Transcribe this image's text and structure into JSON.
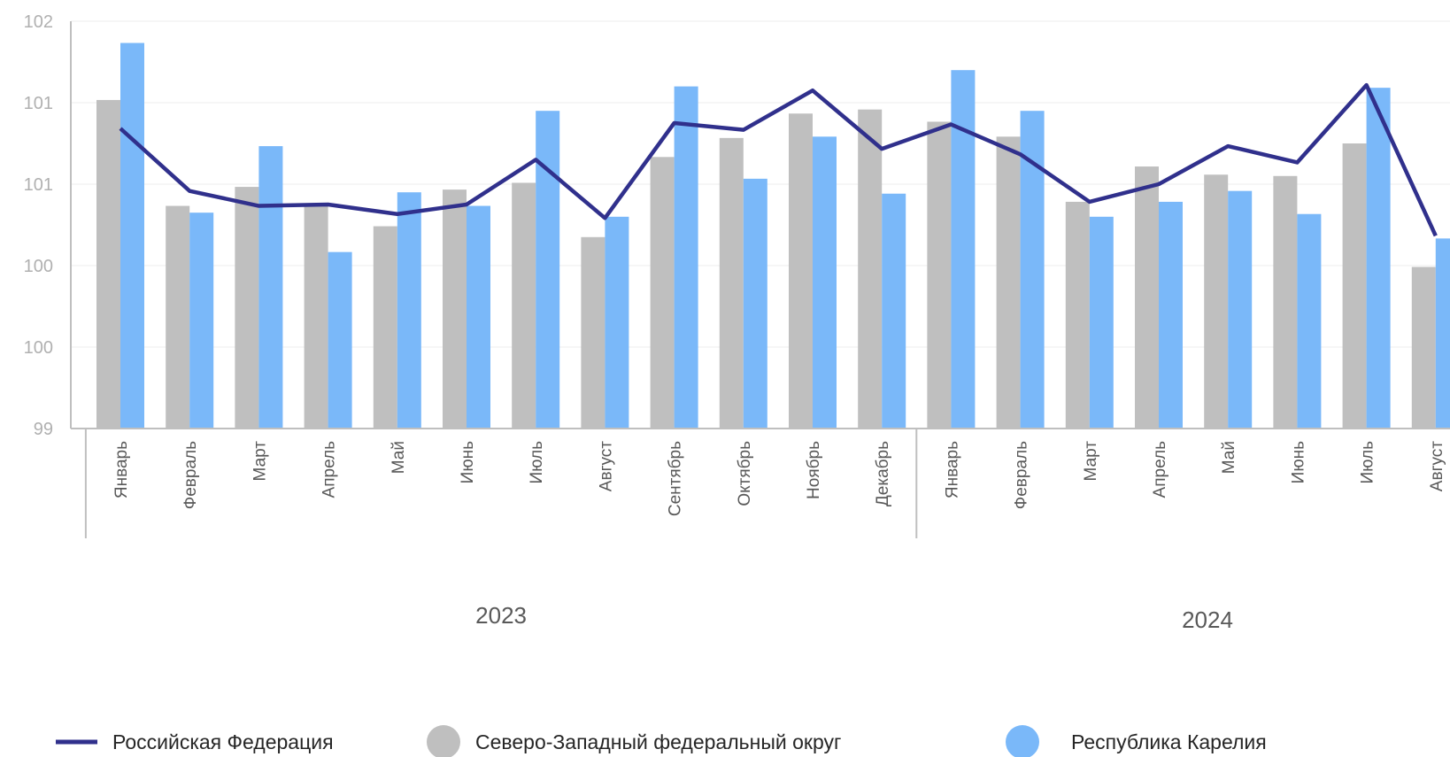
{
  "chart_data": {
    "type": "bar",
    "ylim": [
      99,
      102
    ],
    "y_ticks": [
      99,
      99.6,
      100.2,
      100.8,
      101.4,
      102
    ],
    "y_tick_labels": [
      "99",
      "100",
      "100",
      "101",
      "101",
      "102"
    ],
    "grid": true,
    "groups": [
      {
        "label": "2023",
        "size": 12
      },
      {
        "label": "2024",
        "size": 8
      }
    ],
    "categories": [
      "Январь",
      "Февраль",
      "Март",
      "Апрель",
      "Май",
      "Июнь",
      "Июль",
      "Август",
      "Сентябрь",
      "Октябрь",
      "Ноябрь",
      "Декабрь",
      "Январь",
      "Февраль",
      "Март",
      "Апрель",
      "Май",
      "Июнь",
      "Июль",
      "Август"
    ],
    "series": [
      {
        "name": "Северо-Западный федеральный округ",
        "type": "bar",
        "color": "#bfbfbf",
        "values": [
          101.42,
          100.64,
          100.78,
          100.64,
          100.49,
          100.76,
          100.81,
          100.41,
          101.0,
          101.14,
          101.32,
          101.35,
          101.26,
          101.15,
          100.67,
          100.93,
          100.87,
          100.86,
          101.1,
          100.19
        ]
      },
      {
        "name": "Республика Карелия",
        "type": "bar",
        "color": "#7ab8f9",
        "values": [
          101.84,
          100.59,
          101.08,
          100.3,
          100.74,
          100.64,
          101.34,
          100.56,
          101.52,
          100.84,
          101.15,
          100.73,
          101.64,
          101.34,
          100.56,
          100.67,
          100.75,
          100.58,
          101.51,
          100.4
        ]
      },
      {
        "name": "Российская Федерация",
        "type": "line",
        "color": "#30308c",
        "values": [
          101.21,
          100.75,
          100.64,
          100.65,
          100.58,
          100.65,
          100.98,
          100.55,
          101.25,
          101.2,
          101.49,
          101.06,
          101.24,
          101.02,
          100.67,
          100.8,
          101.08,
          100.96,
          101.53,
          100.42
        ]
      }
    ],
    "legend": {
      "position": "bottom",
      "items": [
        {
          "label": "Российская Федерация",
          "marker": "line",
          "color": "#30308c"
        },
        {
          "label": "Северо-Западный федеральный округ",
          "marker": "circle",
          "color": "#bfbfbf"
        },
        {
          "label": "Республика Карелия",
          "marker": "circle",
          "color": "#7ab8f9"
        }
      ]
    }
  }
}
